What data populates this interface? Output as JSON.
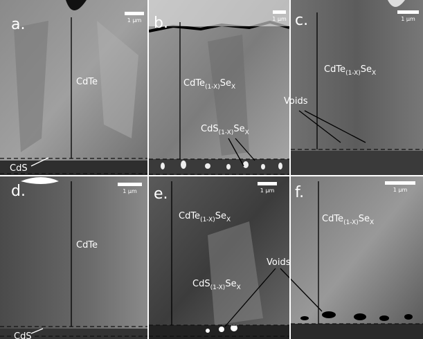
{
  "panels": [
    {
      "label": "a.",
      "scale_bar": "1 µm",
      "annotations": [
        {
          "parts": [
            {
              "text": "CdTe"
            }
          ]
        },
        {
          "parts": [
            {
              "text": "CdS"
            }
          ]
        }
      ]
    },
    {
      "label": "b.",
      "scale_bar": "1 µm",
      "annotations": [
        {
          "parts": [
            {
              "text": "CdTe"
            },
            {
              "text": "(1-X)",
              "sub": true
            },
            {
              "text": "Se"
            },
            {
              "text": "X",
              "sub": true
            }
          ]
        },
        {
          "parts": [
            {
              "text": "CdS"
            },
            {
              "text": "(1-X)",
              "sub": true
            },
            {
              "text": "Se"
            },
            {
              "text": "X",
              "sub": true
            }
          ]
        }
      ]
    },
    {
      "label": "c.",
      "scale_bar": "1 µm",
      "annotations": [
        {
          "parts": [
            {
              "text": "CdTe"
            },
            {
              "text": "(1-X)",
              "sub": true
            },
            {
              "text": "Se"
            },
            {
              "text": "X",
              "sub": true
            }
          ]
        },
        {
          "parts": [
            {
              "text": "Voids"
            }
          ]
        }
      ]
    },
    {
      "label": "d.",
      "scale_bar": "1 µm",
      "annotations": [
        {
          "parts": [
            {
              "text": "CdTe"
            }
          ]
        },
        {
          "parts": [
            {
              "text": "CdS"
            }
          ]
        }
      ]
    },
    {
      "label": "e.",
      "scale_bar": "1 µm",
      "annotations": [
        {
          "parts": [
            {
              "text": "CdTe"
            },
            {
              "text": "(1-X)",
              "sub": true
            },
            {
              "text": "Se"
            },
            {
              "text": "X",
              "sub": true
            }
          ]
        },
        {
          "parts": [
            {
              "text": "CdS"
            },
            {
              "text": "(1-X)",
              "sub": true
            },
            {
              "text": "Se"
            },
            {
              "text": "X",
              "sub": true
            }
          ]
        },
        {
          "parts": [
            {
              "text": "Voids"
            }
          ]
        }
      ]
    },
    {
      "label": "f.",
      "scale_bar": "1 µm",
      "annotations": [
        {
          "parts": [
            {
              "text": "CdTe"
            },
            {
              "text": "(1-X)",
              "sub": true
            },
            {
              "text": "Se"
            },
            {
              "text": "X",
              "sub": true
            }
          ]
        }
      ]
    }
  ]
}
